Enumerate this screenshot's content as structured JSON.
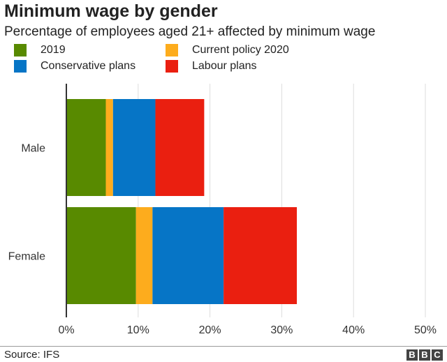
{
  "chart_data": {
    "type": "bar",
    "orientation": "horizontal",
    "stacked": true,
    "title": "Minimum wage by gender",
    "subtitle": "Percentage of employees aged 21+ affected by minimum wage",
    "categories": [
      "Male",
      "Female"
    ],
    "series": [
      {
        "name": "2019",
        "color": "#588a00",
        "values": [
          5.5,
          9.7
        ]
      },
      {
        "name": "Current policy 2020",
        "color": "#fdac1d",
        "values": [
          1.0,
          2.3
        ]
      },
      {
        "name": "Conservative plans",
        "color": "#0675c6",
        "values": [
          5.9,
          9.9
        ]
      },
      {
        "name": "Labour plans",
        "color": "#ea1f10",
        "values": [
          6.8,
          10.2
        ]
      }
    ],
    "xlim": [
      0,
      50
    ],
    "xticks": [
      0,
      10,
      20,
      30,
      40,
      50
    ],
    "tick_labels": [
      "0%",
      "10%",
      "20%",
      "30%",
      "40%",
      "50%"
    ],
    "grid": true,
    "legend": "top"
  },
  "source": "Source: IFS",
  "logo": [
    "B",
    "B",
    "C"
  ]
}
